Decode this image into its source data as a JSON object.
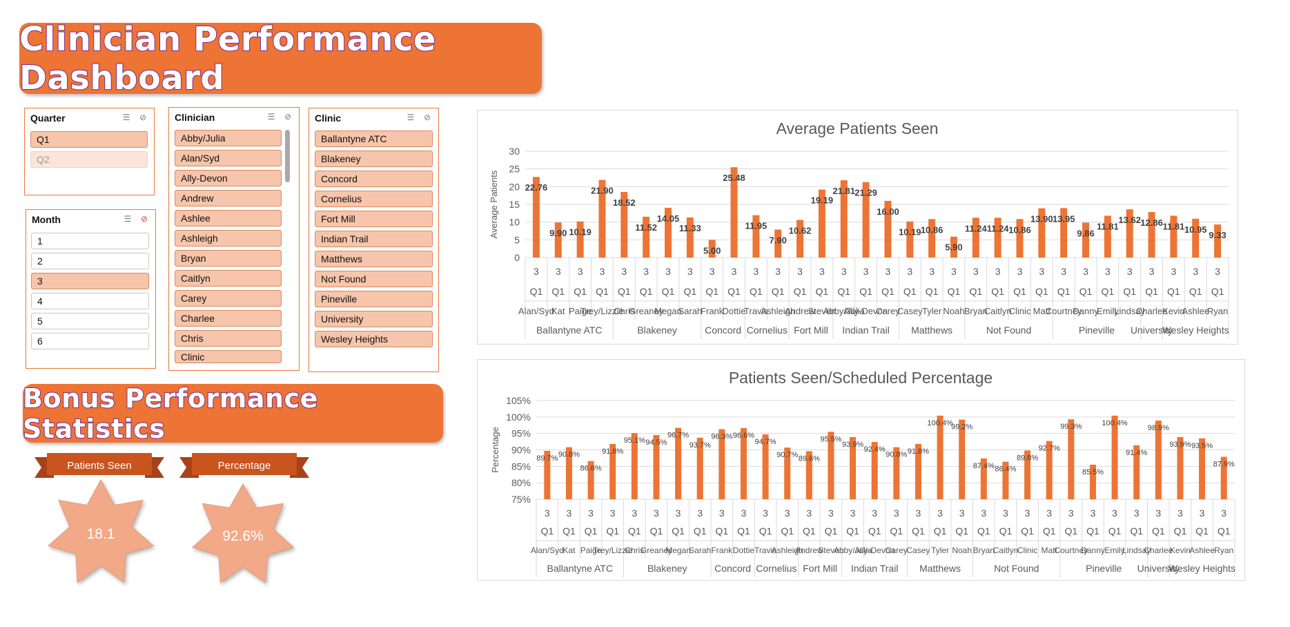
{
  "dashboard": {
    "title": "Clinician Performance Dashboard"
  },
  "bonus": {
    "title": "Bonus Performance Statistics"
  },
  "slicers": {
    "quarter": {
      "title": "Quarter",
      "items": [
        {
          "label": "Q1",
          "state": "sel"
        },
        {
          "label": "Q2",
          "state": "dim"
        }
      ]
    },
    "month": {
      "title": "Month",
      "items": [
        {
          "label": "1",
          "state": "unsel"
        },
        {
          "label": "2",
          "state": "unsel"
        },
        {
          "label": "3",
          "state": "sel"
        },
        {
          "label": "4",
          "state": "unsel"
        },
        {
          "label": "5",
          "state": "unsel"
        },
        {
          "label": "6",
          "state": "unsel"
        }
      ]
    },
    "clinician": {
      "title": "Clinician",
      "items": [
        {
          "label": "Abby/Julia",
          "state": "sel"
        },
        {
          "label": "Alan/Syd",
          "state": "sel"
        },
        {
          "label": "Ally-Devon",
          "state": "sel"
        },
        {
          "label": "Andrew",
          "state": "sel"
        },
        {
          "label": "Ashlee",
          "state": "sel"
        },
        {
          "label": "Ashleigh",
          "state": "sel"
        },
        {
          "label": "Bryan",
          "state": "sel"
        },
        {
          "label": "Caitlyn",
          "state": "sel"
        },
        {
          "label": "Carey",
          "state": "sel"
        },
        {
          "label": "Charlee",
          "state": "sel"
        },
        {
          "label": "Chris",
          "state": "sel"
        },
        {
          "label": "Clinic",
          "state": "sel"
        }
      ]
    },
    "clinic": {
      "title": "Clinic",
      "items": [
        {
          "label": "Ballantyne ATC",
          "state": "sel"
        },
        {
          "label": "Blakeney",
          "state": "sel"
        },
        {
          "label": "Concord",
          "state": "sel"
        },
        {
          "label": "Cornelius",
          "state": "sel"
        },
        {
          "label": "Fort Mill",
          "state": "sel"
        },
        {
          "label": "Indian Trail",
          "state": "sel"
        },
        {
          "label": "Matthews",
          "state": "sel"
        },
        {
          "label": "Not Found",
          "state": "sel"
        },
        {
          "label": "Pineville",
          "state": "sel"
        },
        {
          "label": "University",
          "state": "sel"
        },
        {
          "label": "Wesley Heights",
          "state": "sel"
        }
      ]
    }
  },
  "stats": {
    "patients_seen": {
      "label": "Patients Seen",
      "value": "18.1"
    },
    "percentage": {
      "label": "Percentage",
      "value": "92.6%"
    }
  },
  "colors": {
    "accent": "#ED7434",
    "bar": "#ED7434",
    "slicer_selected": "#F6C5AB",
    "star": "#F2A988",
    "ribbon": "#C9541E"
  },
  "chart_data": [
    {
      "type": "bar",
      "title": "Average Patients Seen",
      "ylabel": "Average Patients",
      "xlabel": "",
      "ylim": [
        0,
        30
      ],
      "yticks": [
        0,
        5,
        10,
        15,
        20,
        25,
        30
      ],
      "ytick_labels": [
        "0",
        "5",
        "10",
        "15",
        "20",
        "25",
        "30"
      ],
      "grid": true,
      "legend": "none",
      "month_label": "3",
      "quarter_label": "Q1",
      "categories": [
        "Alan/Syd",
        "Kat",
        "Paige",
        "Trey/Lizzie",
        "Chris",
        "Greaney",
        "Megan",
        "Sarah",
        "Frank",
        "Dottie",
        "Travis",
        "Ashleigh",
        "Andrew",
        "Steven",
        "Abby/Julia",
        "Ally-Devon",
        "Carey",
        "Casey",
        "Tyler",
        "Noah",
        "Bryan",
        "Caitlyn",
        "Clinic",
        "Matt",
        "Courtney",
        "Danny",
        "Emily",
        "Lindsay",
        "Charlee",
        "Kevin",
        "Ashlee",
        "Ryan"
      ],
      "values": [
        22.76,
        9.9,
        10.19,
        21.9,
        18.52,
        11.52,
        14.05,
        11.33,
        5.0,
        25.48,
        11.95,
        7.9,
        10.62,
        19.19,
        21.81,
        21.29,
        16.0,
        10.19,
        10.86,
        5.9,
        11.24,
        11.24,
        10.86,
        13.9,
        13.95,
        9.86,
        11.81,
        13.62,
        12.86,
        11.81,
        10.95,
        9.33
      ],
      "data_labels": [
        "22.76",
        "9.90",
        "10.19",
        "21.90",
        "18.52",
        "11.52",
        "14.05",
        "11.33",
        "5.00",
        "25.48",
        "11.95",
        "7.90",
        "10.62",
        "19.19",
        "21.81",
        "21.29",
        "16.00",
        "10.19",
        "10.86",
        "5.90",
        "11.24",
        "11.24",
        "10.86",
        "13.90",
        "13.95",
        "9.86",
        "11.81",
        "13.62",
        "12.86",
        "11.81",
        "10.95",
        "9.33"
      ],
      "groups": [
        {
          "name": "Ballantyne ATC",
          "start": 0,
          "count": 4
        },
        {
          "name": "Blakeney",
          "start": 4,
          "count": 4
        },
        {
          "name": "Concord",
          "start": 8,
          "count": 2
        },
        {
          "name": "Cornelius",
          "start": 10,
          "count": 2
        },
        {
          "name": "Fort Mill",
          "start": 12,
          "count": 2
        },
        {
          "name": "Indian Trail",
          "start": 14,
          "count": 3
        },
        {
          "name": "Matthews",
          "start": 17,
          "count": 3
        },
        {
          "name": "Not Found",
          "start": 20,
          "count": 4
        },
        {
          "name": "Pineville",
          "start": 24,
          "count": 4
        },
        {
          "name": "University",
          "start": 28,
          "count": 1
        },
        {
          "name": "Wesley Heights",
          "start": 29,
          "count": 3
        }
      ]
    },
    {
      "type": "bar",
      "title": "Patients Seen/Scheduled Percentage",
      "ylabel": "Percentage",
      "xlabel": "",
      "ylim": [
        75,
        105
      ],
      "yticks": [
        75,
        80,
        85,
        90,
        95,
        100,
        105
      ],
      "ytick_labels": [
        "75%",
        "80%",
        "85%",
        "90%",
        "95%",
        "100%",
        "105%"
      ],
      "grid": true,
      "legend": "none",
      "month_label": "3",
      "quarter_label": "Q1",
      "categories": [
        "Alan/Syd",
        "Kat",
        "Paige",
        "Trey/Lizzie",
        "Chris",
        "Greaney",
        "Megan",
        "Sarah",
        "Frank",
        "Dottie",
        "Travis",
        "Ashleigh",
        "Andrew",
        "Steven",
        "Abby/Julia",
        "Ally-Devon",
        "Carey",
        "Casey",
        "Tyler",
        "Noah",
        "Bryan",
        "Caitlyn",
        "Clinic",
        "Matt",
        "Courtney",
        "Danny",
        "Emily",
        "Lindsay",
        "Charlee",
        "Kevin",
        "Ashlee",
        "Ryan"
      ],
      "values": [
        89.7,
        90.8,
        86.6,
        91.8,
        95.1,
        94.5,
        96.7,
        93.7,
        96.3,
        96.6,
        94.7,
        90.7,
        89.6,
        95.5,
        93.9,
        92.4,
        90.8,
        91.8,
        100.4,
        99.2,
        87.4,
        86.4,
        89.8,
        92.7,
        99.3,
        85.5,
        100.4,
        91.4,
        98.9,
        93.9,
        93.5,
        87.9
      ],
      "data_labels": [
        "89.7%",
        "90.8%",
        "86.6%",
        "91.8%",
        "95.1%",
        "94.5%",
        "96.7%",
        "93.7%",
        "96.3%",
        "96.6%",
        "94.7%",
        "90.7%",
        "89.6%",
        "95.5%",
        "93.9%",
        "92.4%",
        "90.8%",
        "91.8%",
        "100.4%",
        "99.2%",
        "87.4%",
        "86.4%",
        "89.8%",
        "92.7%",
        "99.3%",
        "85.5%",
        "100.4%",
        "91.4%",
        "98.9%",
        "93.9%",
        "93.5%",
        "87.9%"
      ],
      "groups": [
        {
          "name": "Ballantyne ATC",
          "start": 0,
          "count": 4
        },
        {
          "name": "Blakeney",
          "start": 4,
          "count": 4
        },
        {
          "name": "Concord",
          "start": 8,
          "count": 2
        },
        {
          "name": "Cornelius",
          "start": 10,
          "count": 2
        },
        {
          "name": "Fort Mill",
          "start": 12,
          "count": 2
        },
        {
          "name": "Indian Trail",
          "start": 14,
          "count": 3
        },
        {
          "name": "Matthews",
          "start": 17,
          "count": 3
        },
        {
          "name": "Not Found",
          "start": 20,
          "count": 4
        },
        {
          "name": "Pineville",
          "start": 24,
          "count": 4
        },
        {
          "name": "University",
          "start": 28,
          "count": 1
        },
        {
          "name": "Wesley Heights",
          "start": 29,
          "count": 3
        }
      ]
    }
  ]
}
